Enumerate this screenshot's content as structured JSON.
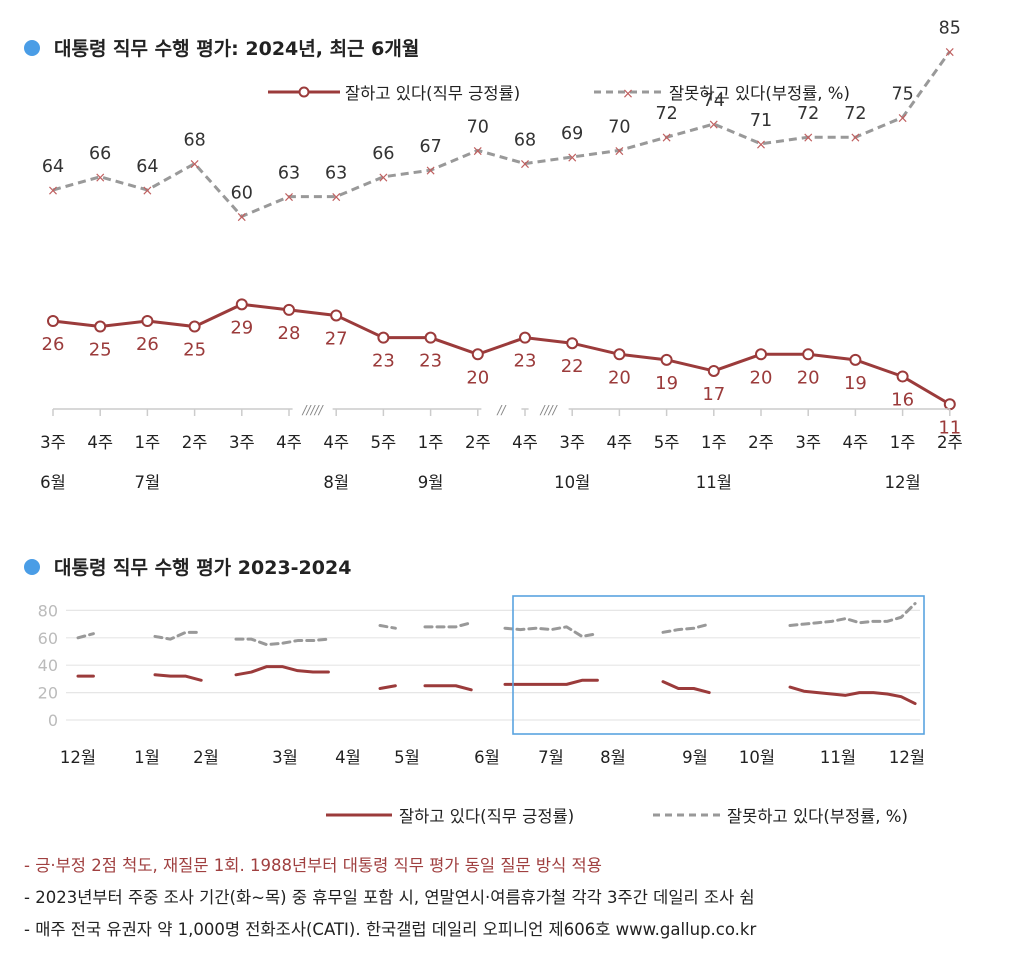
{
  "chart_data": [
    {
      "type": "line",
      "title": "대통령 직무 수행 평가: 2024년, 최근 6개월",
      "categories": [
        "3주",
        "4주",
        "1주",
        "2주",
        "3주",
        "4주",
        "4주",
        "5주",
        "1주",
        "2주",
        "4주",
        "3주",
        "4주",
        "5주",
        "1주",
        "2주",
        "3주",
        "4주",
        "1주",
        "2주"
      ],
      "months": [
        {
          "label": "6월",
          "index": 0
        },
        {
          "label": "7월",
          "index": 2
        },
        {
          "label": "8월",
          "index": 6
        },
        {
          "label": "9월",
          "index": 8
        },
        {
          "label": "10월",
          "index": 11
        },
        {
          "label": "11월",
          "index": 14
        },
        {
          "label": "12월",
          "index": 18
        }
      ],
      "break_marks": [
        "/////",
        "//",
        "////"
      ],
      "series": [
        {
          "name": "잘하고 있다(직무 긍정률)",
          "color": "#9b3b3b",
          "style": "solid",
          "values": [
            26,
            25,
            26,
            25,
            29,
            28,
            27,
            23,
            23,
            20,
            23,
            22,
            20,
            19,
            17,
            20,
            20,
            19,
            16,
            11
          ]
        },
        {
          "name": "잘못하고 있다(부정률, %)",
          "color": "#999999",
          "style": "dashed",
          "values": [
            64,
            66,
            64,
            68,
            60,
            63,
            63,
            66,
            67,
            70,
            68,
            69,
            70,
            72,
            74,
            71,
            72,
            72,
            75,
            85
          ]
        }
      ]
    },
    {
      "type": "line",
      "title": "대통령 직무 수행 평가 2023-2024",
      "ylim": [
        0,
        80
      ],
      "yticks": [
        0,
        20,
        40,
        60,
        80
      ],
      "x_labels": [
        "12월",
        "1월",
        "2월",
        "3월",
        "4월",
        "5월",
        "6월",
        "7월",
        "8월",
        "9월",
        "10월",
        "11월",
        "12월"
      ],
      "series": [
        {
          "name": "잘하고 있다(직무 긍정률)",
          "color": "#9b3b3b",
          "style": "solid",
          "segments": [
            [
              32,
              32
            ],
            [
              33,
              32,
              32,
              29
            ],
            [
              33,
              35,
              39,
              39,
              36,
              35,
              35
            ],
            [
              23,
              25
            ],
            [
              25,
              25,
              25,
              22
            ],
            [
              26,
              26,
              26,
              26,
              26,
              29,
              29
            ],
            [
              28,
              23,
              23,
              20
            ],
            [
              24,
              21,
              20,
              19,
              18,
              20,
              20,
              19,
              17,
              12
            ]
          ]
        },
        {
          "name": "잘못하고 있다(부정률, %)",
          "color": "#999999",
          "style": "dashed",
          "segments": [
            [
              60,
              63
            ],
            [
              61,
              59,
              64,
              64
            ],
            [
              59,
              59,
              55,
              56,
              58,
              58,
              59
            ],
            [
              69,
              67
            ],
            [
              68,
              68,
              68,
              71
            ],
            [
              67,
              66,
              67,
              66,
              68,
              61,
              63
            ],
            [
              64,
              66,
              67,
              70
            ],
            [
              69,
              70,
              71,
              72,
              74,
              71,
              72,
              72,
              75,
              85
            ]
          ]
        }
      ],
      "highlight_box": {
        "from_label": "7월",
        "to_label": "12월"
      }
    }
  ],
  "notes": [
    "- 긍·부정 2점 척도, 재질문 1회. 1988년부터 대통령 직무 평가 동일 질문 방식 적용",
    "- 2023년부터 주중 조사 기간(화~목) 중 휴무일 포함 시, 연말연시·여름휴가철 각각 3주간 데일리 조사 쉼",
    "- 매주 전국 유권자 약 1,000명 전화조사(CATI). 한국갤럽 데일리 오피니언 제606호 www.gallup.co.kr"
  ],
  "colors": {
    "accent": "#4a9de6",
    "positive": "#9b3b3b",
    "negative": "#999999",
    "note_red": "#a04040"
  }
}
